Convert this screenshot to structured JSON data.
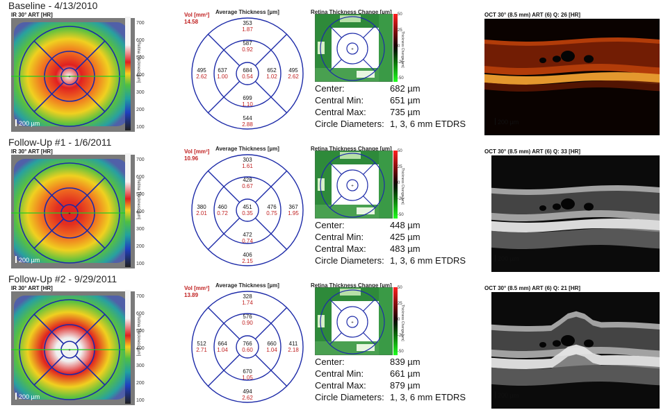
{
  "rows": [
    {
      "title": "Baseline - 4/13/2010",
      "ir_label": "IR 30° ART [HR]",
      "ir_scale": "200 µm",
      "thickness_axis": "Retina Thickness [µm]",
      "thickness_ticks": [
        "700",
        "600",
        "500",
        "400",
        "300",
        "200",
        "100"
      ],
      "vol_label": "Vol [mm³]",
      "vol_value": "14.58",
      "avg_title": "Average Thickness [µm]",
      "sectors": {
        "outer_sup": {
          "t": "353",
          "v": "1.87"
        },
        "inner_sup": {
          "t": "587",
          "v": "0.92"
        },
        "outer_temp": {
          "t": "495",
          "v": "2.62"
        },
        "inner_temp": {
          "t": "637",
          "v": "1.00"
        },
        "center": {
          "t": "684",
          "v": "0.54"
        },
        "inner_nas": {
          "t": "652",
          "v": "1.02"
        },
        "outer_nas": {
          "t": "495",
          "v": "2.62"
        },
        "inner_inf": {
          "t": "699",
          "v": "1.10"
        },
        "outer_inf": {
          "t": "544",
          "v": "2.88"
        }
      },
      "change_title": "Retina Thickness Change [µm]",
      "change_axis": "Thickness Change [µm]",
      "change_ticks": [
        "50",
        "25",
        "0",
        "-25",
        "-50"
      ],
      "stats": [
        {
          "k": "Center:",
          "v": "682 µm"
        },
        {
          "k": "Central Min:",
          "v": "651 µm"
        },
        {
          "k": "Central Max:",
          "v": "735 µm"
        },
        {
          "k": "Circle Diameters:",
          "v": "1, 3, 6 mm ETDRS"
        }
      ],
      "oct_title": "OCT 30° (8.5 mm) ART (6) Q: 26 [HR]",
      "oct_scale": "200 µm",
      "oct_style": "color"
    },
    {
      "title": "Follow-Up #1 - 1/6/2011",
      "ir_label": "IR 30° ART [HR]",
      "ir_scale": "200 µm",
      "thickness_axis": "Retina Thickness [µm]",
      "thickness_ticks": [
        "700",
        "600",
        "500",
        "400",
        "300",
        "200",
        "100"
      ],
      "vol_label": "Vol [mm³]",
      "vol_value": "10.96",
      "avg_title": "Average Thickness [µm]",
      "sectors": {
        "outer_sup": {
          "t": "303",
          "v": "1.61"
        },
        "inner_sup": {
          "t": "428",
          "v": "0.67"
        },
        "outer_temp": {
          "t": "380",
          "v": "2.01"
        },
        "inner_temp": {
          "t": "460",
          "v": "0.72"
        },
        "center": {
          "t": "451",
          "v": "0.35"
        },
        "inner_nas": {
          "t": "476",
          "v": "0.75"
        },
        "outer_nas": {
          "t": "367",
          "v": "1.95"
        },
        "inner_inf": {
          "t": "472",
          "v": "0.74"
        },
        "outer_inf": {
          "t": "406",
          "v": "2.15"
        }
      },
      "change_title": "Retina Thickness Change [µm]",
      "change_axis": "Thickness Change [µm]",
      "change_ticks": [
        "50",
        "25",
        "0",
        "-25",
        "-50"
      ],
      "stats": [
        {
          "k": "Center:",
          "v": "448 µm"
        },
        {
          "k": "Central Min:",
          "v": "425 µm"
        },
        {
          "k": "Central Max:",
          "v": "483 µm"
        },
        {
          "k": "Circle Diameters:",
          "v": "1, 3, 6 mm ETDRS"
        }
      ],
      "oct_title": "OCT 30° (8.5 mm) ART (6) Q: 33 [HR]",
      "oct_scale": "200 µm",
      "oct_style": "gray"
    },
    {
      "title": "Follow-Up #2 - 9/29/2011",
      "ir_label": "IR 30° ART [HR]",
      "ir_scale": "200 µm",
      "thickness_axis": "Retina Thickness [µm]",
      "thickness_ticks": [
        "700",
        "600",
        "500",
        "400",
        "300",
        "200",
        "100"
      ],
      "vol_label": "Vol [mm³]",
      "vol_value": "13.89",
      "avg_title": "Average Thickness [µm]",
      "sectors": {
        "outer_sup": {
          "t": "328",
          "v": "1.74"
        },
        "inner_sup": {
          "t": "576",
          "v": "0.90"
        },
        "outer_temp": {
          "t": "512",
          "v": "2.71"
        },
        "inner_temp": {
          "t": "664",
          "v": "1.04"
        },
        "center": {
          "t": "766",
          "v": "0.60"
        },
        "inner_nas": {
          "t": "660",
          "v": "1.04"
        },
        "outer_nas": {
          "t": "411",
          "v": "2.18"
        },
        "inner_inf": {
          "t": "670",
          "v": "1.05"
        },
        "outer_inf": {
          "t": "494",
          "v": "2.62"
        }
      },
      "change_title": "Retina Thickness Change [µm]",
      "change_axis": "Thickness Change [µm]",
      "change_ticks": [
        "50",
        "25",
        "0",
        "-25",
        "-50"
      ],
      "stats": [
        {
          "k": "Center:",
          "v": "839 µm"
        },
        {
          "k": "Central Min:",
          "v": "661 µm"
        },
        {
          "k": "Central Max:",
          "v": "879 µm"
        },
        {
          "k": "Circle Diameters:",
          "v": "1, 3, 6 mm ETDRS"
        }
      ],
      "oct_title": "OCT 30° (8.5 mm) ART (6) Q: 21 [HR]",
      "oct_scale": "200 µm",
      "oct_style": "gray-detached"
    }
  ],
  "colors": {
    "grid_line": "#1c2aa8",
    "thickness_value": "#111111",
    "volume_value": "#c02020",
    "fixation_line": "#22cc22"
  }
}
